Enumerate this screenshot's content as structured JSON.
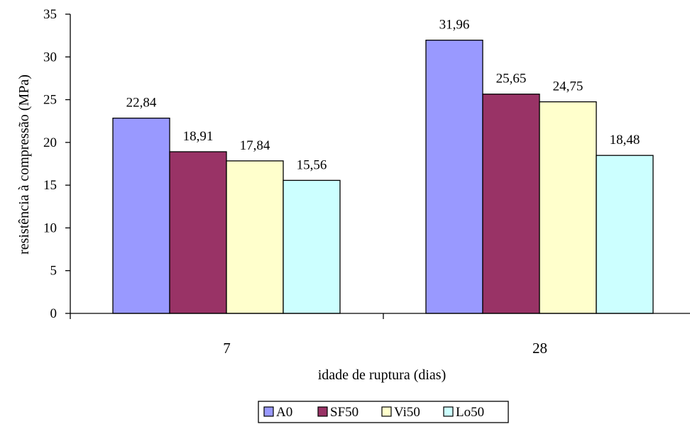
{
  "chart_data": {
    "type": "bar",
    "xlabel": "idade de ruptura (dias)",
    "ylabel": "resistência à compressão (MPa)",
    "ylim": [
      0,
      35
    ],
    "yticks": [
      0,
      5,
      10,
      15,
      20,
      25,
      30,
      35
    ],
    "categories": [
      "7",
      "28"
    ],
    "series": [
      {
        "name": "A0",
        "color": "#9999ff",
        "values": [
          22.84,
          31.96
        ],
        "labels": [
          "22,84",
          "31,96"
        ]
      },
      {
        "name": "SF50",
        "color": "#993366",
        "values": [
          18.91,
          25.65
        ],
        "labels": [
          "18,91",
          "25,65"
        ]
      },
      {
        "name": "Vi50",
        "color": "#ffffcc",
        "values": [
          17.84,
          24.75
        ],
        "labels": [
          "17,84",
          "24,75"
        ]
      },
      {
        "name": "Lo50",
        "color": "#ccffff",
        "values": [
          15.56,
          18.48
        ],
        "labels": [
          "15,56",
          "18,48"
        ]
      }
    ],
    "grid": false,
    "legend_position": "bottom"
  }
}
